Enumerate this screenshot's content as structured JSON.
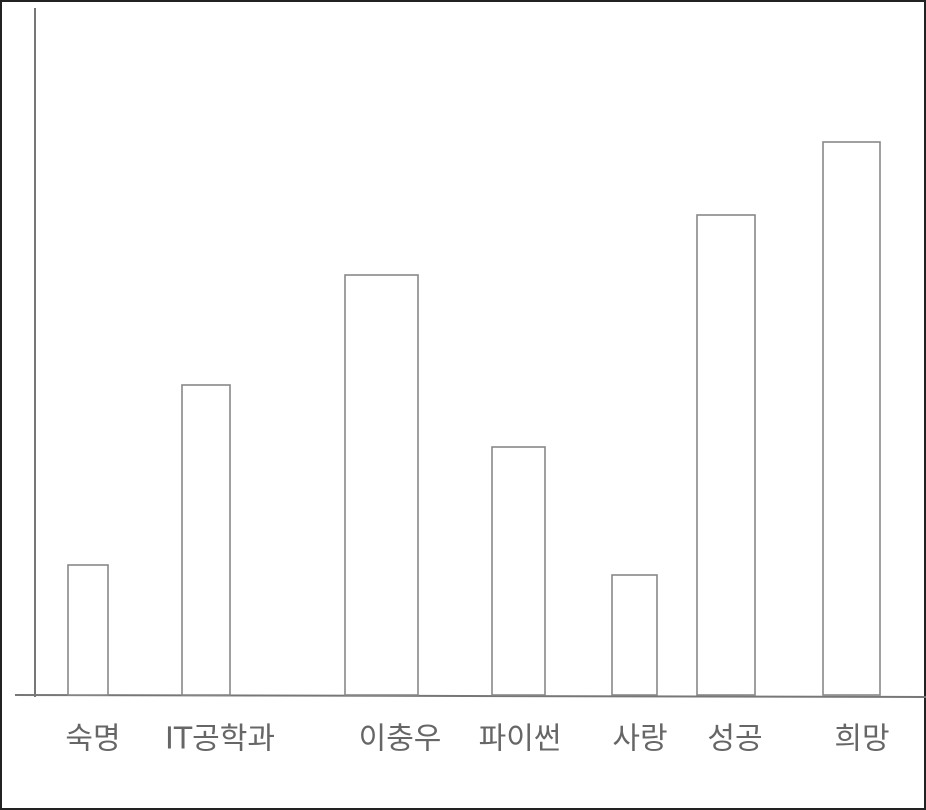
{
  "chart_data": {
    "type": "bar",
    "categories": [
      "숙명",
      "IT공학과",
      "이충우",
      "파이썬",
      "사랑",
      "성공",
      "희망"
    ],
    "values": [
      130,
      310,
      420,
      248,
      120,
      480,
      553
    ],
    "color": "#ffffff",
    "ylim": [
      0,
      685
    ]
  }
}
